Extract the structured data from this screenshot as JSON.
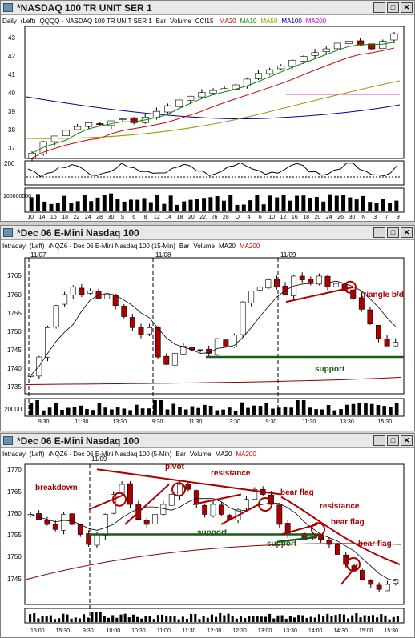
{
  "windows": [
    {
      "title": "*NASDAQ 100 TR UNIT SER 1",
      "header": [
        "Daily",
        "(Left)",
        "QQQQ - NASDAQ 100 TR UNIT SER 1",
        "Bar",
        "Volume",
        "CCI15"
      ],
      "ma_labels": [
        {
          "text": "MA20",
          "color": "#cc0000"
        },
        {
          "text": "MA10",
          "color": "#008800"
        },
        {
          "text": "MA50",
          "color": "#999900"
        },
        {
          "text": "MA100",
          "color": "#000099"
        },
        {
          "text": "MA200",
          "color": "#cc00cc"
        }
      ],
      "price_axis": [
        "43",
        "42",
        "41",
        "40",
        "39",
        "38",
        "37"
      ],
      "cci_axis": [
        "200"
      ],
      "volume_axis": [
        "100000000"
      ],
      "x_axis": [
        "10",
        "14",
        "16",
        "18",
        "22",
        "24",
        "28",
        "30",
        "S",
        "6",
        "8",
        "12",
        "14",
        "18",
        "20",
        "22",
        "26",
        "28",
        "O",
        "4",
        "6",
        "10",
        "12",
        "16",
        "18",
        "20",
        "24",
        "26",
        "30",
        "N",
        "3",
        "7",
        "9"
      ]
    },
    {
      "title": "*Dec 06  E-Mini Nasdaq 100",
      "header": [
        "Intraday",
        "(Left)",
        "/NQZ6 - Dec 06  E-Mini Nasdaq 100 (15-Min)",
        "Bar",
        "Volume",
        "MA20"
      ],
      "ma_labels": [
        {
          "text": "MA200",
          "color": "#cc0000"
        }
      ],
      "price_axis": [
        "1765",
        "1760",
        "1755",
        "1750",
        "1745",
        "1740",
        "1735"
      ],
      "volume_axis": [
        "20000"
      ],
      "x_axis": [
        "9:30",
        "11:30",
        "13:30",
        "9:30",
        "11:30",
        "13:30",
        "9:30",
        "11:30",
        "13:30",
        "15:30"
      ],
      "date_marks": [
        "11/07",
        "11/08",
        "11/09"
      ],
      "annotations": [
        "triangle b/d",
        "support"
      ]
    },
    {
      "title": "*Dec 06  E-Mini Nasdaq 100",
      "header": [
        "Intraday",
        "(Left)",
        "/NQZ6 - Dec 06  E-Mini Nasdaq 100 (5-Min)",
        "Bar",
        "Volume",
        "MA20"
      ],
      "ma_labels": [
        {
          "text": "MA200",
          "color": "#cc0000"
        }
      ],
      "price_axis": [
        "1770",
        "1765",
        "1760",
        "1755",
        "1750",
        "1745"
      ],
      "x_axis": [
        "15:00",
        "15:30",
        "9:30",
        "10:00",
        "10:30",
        "11:00",
        "11:30",
        "12:00",
        "12:30",
        "13:00",
        "13:30",
        "14:00",
        "14:30",
        "15:00",
        "15:30"
      ],
      "date_marks": [
        "11/09"
      ],
      "annotations": [
        "breakdown",
        "pivot",
        "resistance",
        "bear flag",
        "resistance",
        "bear flag",
        "support",
        "support",
        "bear flag"
      ]
    }
  ],
  "chart_data": [
    {
      "type": "candlestick",
      "title": "QQQQ - NASDAQ 100 TR UNIT SER 1",
      "timeframe": "Daily",
      "ylim": [
        36.8,
        43.6
      ],
      "close_start": 37.0,
      "close_end": 43.3,
      "close_path": [
        37.0,
        37.6,
        37.9,
        38.2,
        38.4,
        38.6,
        38.5,
        38.7,
        38.8,
        38.6,
        38.9,
        39.2,
        39.5,
        39.8,
        40.0,
        40.2,
        40.3,
        40.4,
        40.6,
        40.9,
        41.2,
        41.4,
        41.6,
        41.9,
        42.1,
        42.3,
        42.5,
        42.8,
        42.9,
        42.7,
        42.5,
        42.9,
        43.3
      ],
      "ma200_level": 40.1,
      "cci": {
        "reference_level": 200
      },
      "colors": {
        "up": "#2a8a2a",
        "down": "#aa0000",
        "ma10": "#008800",
        "ma20": "#cc0000",
        "ma50": "#999900",
        "ma100": "#000099",
        "ma200": "#cc00cc"
      }
    },
    {
      "type": "candlestick",
      "title": "/NQZ6 - Dec 06  E-Mini Nasdaq 100 (15-Min)",
      "timeframe": "15-Min",
      "ylim": [
        1733,
        1770
      ],
      "sessions": [
        "11/07",
        "11/08",
        "11/09"
      ],
      "close_path": [
        1738,
        1743,
        1751,
        1757,
        1760,
        1762,
        1760,
        1761,
        1759,
        1760,
        1757,
        1754,
        1751,
        1749,
        1751,
        1743,
        1741,
        1744,
        1746,
        1745,
        1745,
        1744,
        1748,
        1746,
        1749,
        1758,
        1761,
        1762,
        1764,
        1762,
        1760,
        1765,
        1764,
        1763,
        1765,
        1762,
        1763,
        1761,
        1759,
        1756,
        1752,
        1748,
        1746,
        1747
      ],
      "support_level": 1743,
      "trendline": {
        "from": 1758,
        "to": 1761
      },
      "ma200_level": 1736,
      "colors": {
        "up": "#2a8a2a",
        "down": "#aa0000",
        "ma20": "#000000",
        "ma200": "#880000",
        "support": "#1a5c1a",
        "annotation": "#aa0000"
      }
    },
    {
      "type": "candlestick",
      "title": "/NQZ6 - Dec 06  E-Mini Nasdaq 100 (5-Min)",
      "timeframe": "5-Min",
      "ylim": [
        1744,
        1772
      ],
      "close_path": [
        1762,
        1761,
        1760,
        1759,
        1762,
        1760,
        1758,
        1756,
        1758,
        1762,
        1766,
        1768,
        1764,
        1761,
        1760,
        1762,
        1764,
        1766,
        1768,
        1767,
        1764,
        1762,
        1764,
        1762,
        1761,
        1763,
        1765,
        1767,
        1766,
        1764,
        1760,
        1758,
        1758,
        1757,
        1758,
        1757,
        1756,
        1754,
        1752,
        1751,
        1749,
        1748,
        1747,
        1748,
        1749
      ],
      "support_level": 1758,
      "resistance": {
        "from": 1771,
        "to": 1766
      },
      "ma200_level": 1750,
      "colors": {
        "up": "#2a8a2a",
        "down": "#aa0000",
        "ma20": "#000000",
        "ma200": "#880000",
        "support": "#1a5c1a",
        "annotation": "#aa0000"
      }
    }
  ]
}
